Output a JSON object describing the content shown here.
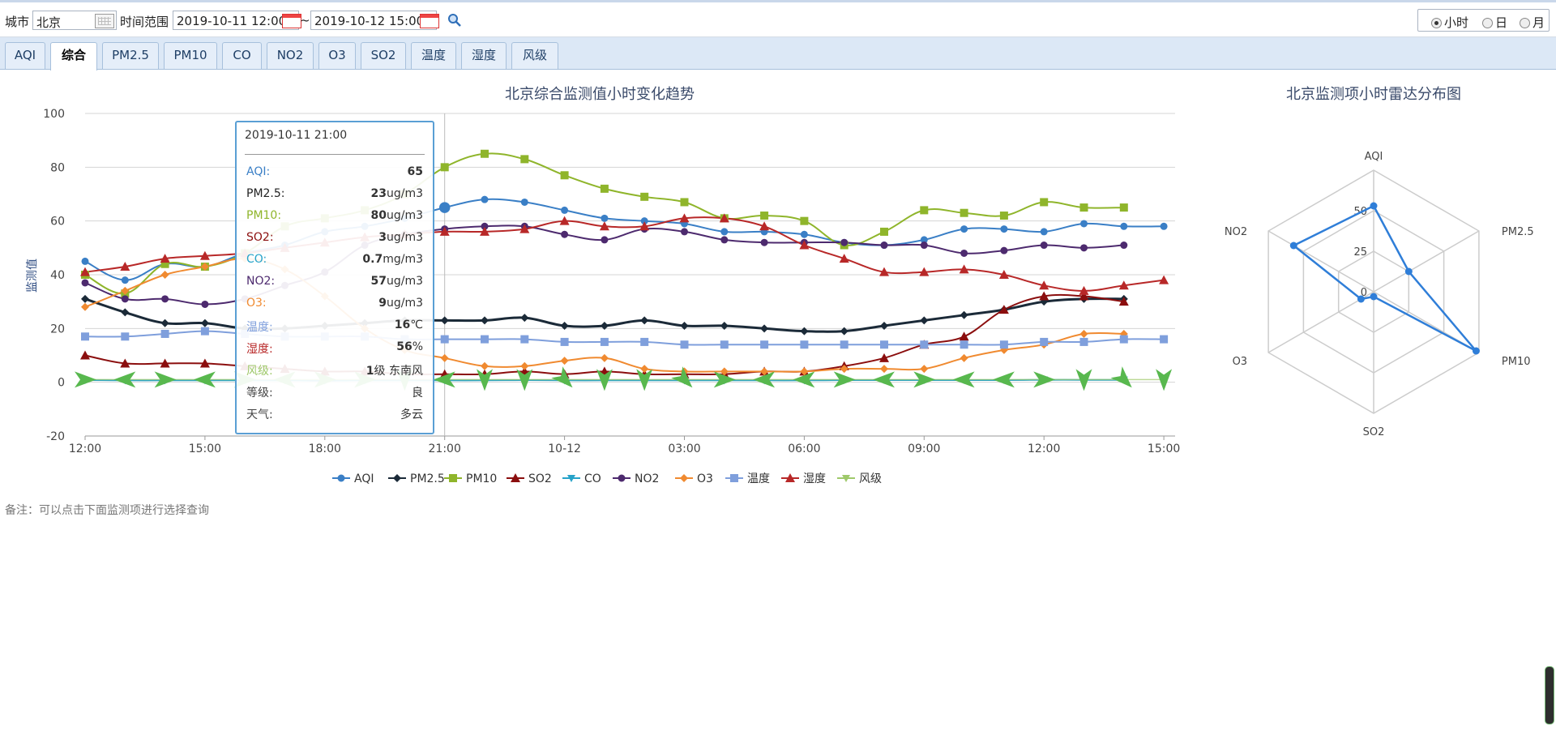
{
  "toolbar": {
    "city_label": "城市",
    "city_value": "北京",
    "range_label": "时间范围",
    "start_value": "2019-10-11 12:00",
    "tilde": "~",
    "end_value": "2019-10-12 15:00",
    "granularity": [
      {
        "label": "小时",
        "selected": true
      },
      {
        "label": "日",
        "selected": false
      },
      {
        "label": "月",
        "selected": false
      }
    ]
  },
  "tabs": [
    "AQI",
    "综合",
    "PM2.5",
    "PM10",
    "CO",
    "NO2",
    "O3",
    "SO2",
    "温度",
    "湿度",
    "风级"
  ],
  "active_tab": "综合",
  "note": "备注：可以点击下面监测项进行选择查询",
  "tooltip": {
    "title": "2019-10-11 21:00",
    "rows": [
      {
        "label": "AQI:",
        "value": "65",
        "unit": "",
        "color": "#3a7fc6"
      },
      {
        "label": "PM2.5:",
        "value": "23",
        "unit": "ug/m3",
        "color": "#222222"
      },
      {
        "label": "PM10:",
        "value": "80",
        "unit": "ug/m3",
        "color": "#8fb52b"
      },
      {
        "label": "SO2:",
        "value": "3",
        "unit": "ug/m3",
        "color": "#8b0e0e"
      },
      {
        "label": "CO:",
        "value": "0.7",
        "unit": "mg/m3",
        "color": "#27a3c9"
      },
      {
        "label": "NO2:",
        "value": "57",
        "unit": "ug/m3",
        "color": "#4d2a6e"
      },
      {
        "label": "O3:",
        "value": "9",
        "unit": "ug/m3",
        "color": "#f08a30"
      },
      {
        "label": "温度:",
        "value": "16",
        "unit": "℃",
        "color": "#7f9fdc"
      },
      {
        "label": "湿度:",
        "value": "56",
        "unit": "%",
        "color": "#b82828"
      },
      {
        "label": "风级:",
        "value": "1",
        "unit": "级 东南风",
        "color": "#9fc96b"
      },
      {
        "label": "等级:",
        "value": "",
        "unit": "良",
        "color": "#444444"
      },
      {
        "label": "天气:",
        "value": "",
        "unit": "多云",
        "color": "#444444"
      }
    ]
  },
  "chart_data": [
    {
      "type": "line",
      "title": "北京综合监测值小时变化趋势",
      "ylabel": "监测值",
      "xlabel": "",
      "ylim": [
        -20,
        100
      ],
      "yticks": [
        -20,
        0,
        20,
        40,
        60,
        80,
        100
      ],
      "x_tick_labels": [
        "12:00",
        "15:00",
        "18:00",
        "21:00",
        "10-12",
        "03:00",
        "06:00",
        "09:00",
        "12:00",
        "15:00"
      ],
      "x_count": 28,
      "grid": true,
      "legend_position": "bottom",
      "series": [
        {
          "name": "AQI",
          "color": "#3a7fc6",
          "marker": "circle",
          "values": [
            45,
            38,
            44,
            43,
            48,
            51,
            56,
            58,
            61,
            65,
            68,
            67,
            64,
            61,
            60,
            59,
            56,
            56,
            55,
            52,
            51,
            53,
            57,
            57,
            56,
            59,
            58,
            58
          ]
        },
        {
          "name": "PM2.5",
          "color": "#1b2a38",
          "marker": "diamond",
          "values": [
            31,
            26,
            22,
            22,
            20,
            20,
            21,
            22,
            23,
            23,
            23,
            24,
            21,
            21,
            23,
            21,
            21,
            20,
            19,
            19,
            21,
            23,
            25,
            27,
            30,
            31,
            31,
            null
          ]
        },
        {
          "name": "PM10",
          "color": "#8fb52b",
          "marker": "square",
          "values": [
            40,
            33,
            44,
            43,
            48,
            58,
            61,
            64,
            70,
            80,
            85,
            83,
            77,
            72,
            69,
            67,
            61,
            62,
            60,
            51,
            56,
            64,
            63,
            62,
            67,
            65,
            65,
            null
          ]
        },
        {
          "name": "SO2",
          "color": "#8b0e0e",
          "marker": "triangle",
          "values": [
            10,
            7,
            7,
            7,
            6,
            5,
            4,
            4,
            3,
            3,
            3,
            4,
            3,
            4,
            3,
            3,
            3,
            4,
            4,
            6,
            9,
            14,
            17,
            27,
            32,
            32,
            30,
            null
          ]
        },
        {
          "name": "CO",
          "color": "#27a3c9",
          "marker": "tri-down",
          "values": [
            0.8,
            0.7,
            0.7,
            0.7,
            0.7,
            0.7,
            0.6,
            0.7,
            0.7,
            0.7,
            0.7,
            0.8,
            0.7,
            0.7,
            0.7,
            0.7,
            0.7,
            0.7,
            0.7,
            0.8,
            0.8,
            0.8,
            0.8,
            0.8,
            0.9,
            0.9,
            0.9,
            null
          ]
        },
        {
          "name": "NO2",
          "color": "#4d2a6e",
          "marker": "circle",
          "values": [
            37,
            31,
            31,
            29,
            31,
            36,
            41,
            51,
            55,
            57,
            58,
            58,
            55,
            53,
            57,
            56,
            53,
            52,
            52,
            52,
            51,
            51,
            48,
            49,
            51,
            50,
            51,
            null
          ]
        },
        {
          "name": "O3",
          "color": "#f08a30",
          "marker": "diamond",
          "values": [
            28,
            34,
            40,
            43,
            46,
            42,
            32,
            20,
            12,
            9,
            6,
            6,
            8,
            9,
            5,
            4,
            4,
            4,
            4,
            5,
            5,
            5,
            9,
            12,
            14,
            18,
            18,
            null
          ]
        },
        {
          "name": "温度",
          "color": "#7f9fdc",
          "marker": "square",
          "values": [
            17,
            17,
            18,
            19,
            18,
            17,
            17,
            17,
            16,
            16,
            16,
            16,
            15,
            15,
            15,
            14,
            14,
            14,
            14,
            14,
            14,
            14,
            14,
            14,
            15,
            15,
            16,
            16
          ]
        },
        {
          "name": "湿度",
          "color": "#b82828",
          "marker": "triangle",
          "values": [
            41,
            43,
            46,
            47,
            48,
            50,
            52,
            54,
            55,
            56,
            56,
            57,
            60,
            58,
            58,
            61,
            61,
            58,
            51,
            46,
            41,
            41,
            42,
            40,
            36,
            34,
            36,
            38
          ]
        },
        {
          "name": "风级",
          "color": "#9fc96b",
          "marker": "wind-arrow",
          "values": [
            1,
            1,
            1,
            1,
            1,
            1,
            1,
            1,
            1,
            1,
            1,
            1,
            1,
            1,
            1,
            1,
            1,
            1,
            1,
            1,
            1,
            1,
            1,
            1,
            1,
            1,
            1,
            1
          ]
        }
      ]
    },
    {
      "type": "radar",
      "title": "北京监测项小时雷达分布图",
      "axes": [
        "AQI",
        "PM2.5",
        "PM10",
        "SO2",
        "O3",
        "NO2"
      ],
      "rticks": [
        0,
        25,
        50
      ],
      "rmax": 75,
      "series": [
        {
          "color": "#2f7ed8",
          "values": [
            53,
            25,
            73,
            3,
            9,
            57
          ]
        }
      ]
    }
  ]
}
